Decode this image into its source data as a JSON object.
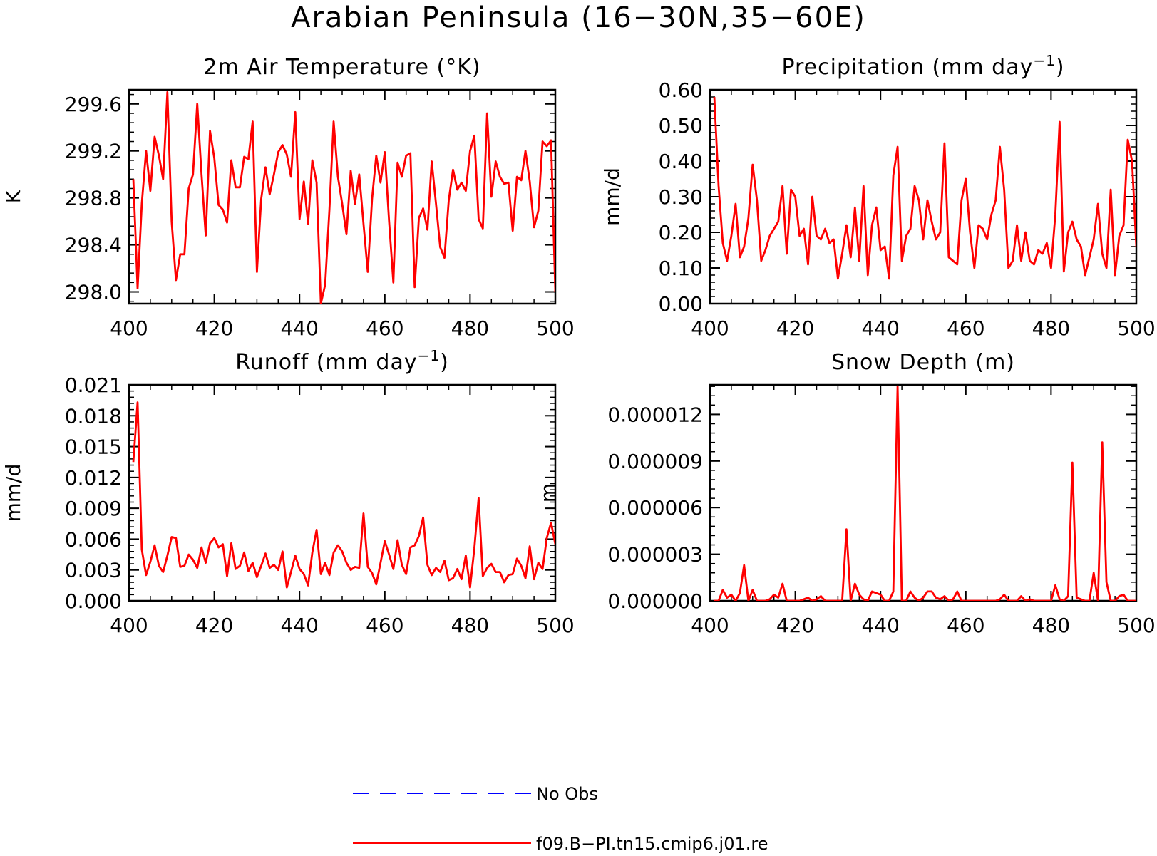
{
  "title": "Arabian Peninsula (16−30N,35−60E)",
  "colors": {
    "model": "#ff0000",
    "obs": "#0000ff",
    "axis": "#000000"
  },
  "legend": {
    "items": [
      {
        "label": "No Obs",
        "style": "dashed",
        "color": "#0000ff"
      },
      {
        "label": "f09.B−PI.tn15.cmip6.j01.re",
        "style": "solid",
        "color": "#ff0000"
      }
    ]
  },
  "chart_data": [
    {
      "type": "line",
      "title": "2m Air Temperature (°K)",
      "ylabel": "K",
      "xlim": [
        400,
        500
      ],
      "ylim": [
        297.9,
        299.72
      ],
      "xticks": [
        400,
        420,
        440,
        460,
        480,
        500
      ],
      "xtick_labels": [
        "400",
        "420",
        "440",
        "460",
        "480",
        "500"
      ],
      "yticks": [
        298.0,
        298.4,
        298.8,
        299.2,
        299.6
      ],
      "ytick_labels": [
        "298.0",
        "298.4",
        "298.8",
        "299.2",
        "299.6"
      ],
      "series": [
        {
          "name": "f09.B−PI.tn15.cmip6.j01.re",
          "x_start": 401,
          "x_step": 1,
          "values": [
            298.96,
            298.03,
            298.75,
            299.2,
            298.86,
            299.32,
            299.16,
            298.96,
            299.7,
            298.6,
            298.1,
            298.32,
            298.32,
            298.88,
            299.0,
            299.6,
            299.0,
            298.48,
            299.37,
            299.14,
            298.74,
            298.7,
            298.59,
            299.12,
            298.89,
            298.89,
            299.15,
            299.13,
            299.45,
            298.17,
            298.79,
            299.06,
            298.83,
            299.0,
            299.19,
            299.25,
            299.17,
            298.98,
            299.53,
            298.62,
            298.94,
            298.58,
            299.12,
            298.93,
            297.9,
            298.06,
            298.7,
            299.45,
            298.98,
            298.75,
            298.49,
            299.03,
            298.75,
            299.0,
            298.58,
            298.17,
            298.79,
            299.16,
            298.93,
            299.19,
            298.6,
            298.08,
            299.1,
            298.98,
            299.16,
            299.18,
            298.04,
            298.63,
            298.71,
            298.53,
            299.11,
            298.75,
            298.38,
            298.29,
            298.78,
            299.04,
            298.87,
            298.93,
            298.86,
            299.2,
            299.33,
            298.62,
            298.54,
            299.52,
            298.81,
            299.11,
            298.98,
            298.92,
            298.93,
            298.52,
            298.98,
            298.95,
            299.2,
            298.94,
            298.55,
            298.69,
            299.28,
            299.24,
            299.29,
            298.0
          ]
        }
      ]
    },
    {
      "type": "line",
      "title": "Precipitation (mm day",
      "title_sup": "−1",
      "title_suffix": ")",
      "ylabel": "mm/d",
      "xlim": [
        400,
        500
      ],
      "ylim": [
        0.0,
        0.6
      ],
      "xticks": [
        400,
        420,
        440,
        460,
        480,
        500
      ],
      "xtick_labels": [
        "400",
        "420",
        "440",
        "460",
        "480",
        "500"
      ],
      "yticks": [
        0.0,
        0.1,
        0.2,
        0.3,
        0.4,
        0.5,
        0.6
      ],
      "ytick_labels": [
        "0.00",
        "0.10",
        "0.20",
        "0.30",
        "0.40",
        "0.50",
        "0.60"
      ],
      "series": [
        {
          "name": "f09.B−PI.tn15.cmip6.j01.re",
          "x_start": 401,
          "x_step": 1,
          "values": [
            0.58,
            0.33,
            0.17,
            0.12,
            0.19,
            0.28,
            0.13,
            0.16,
            0.24,
            0.39,
            0.29,
            0.12,
            0.15,
            0.19,
            0.21,
            0.23,
            0.33,
            0.14,
            0.32,
            0.3,
            0.19,
            0.21,
            0.11,
            0.3,
            0.19,
            0.18,
            0.21,
            0.17,
            0.18,
            0.07,
            0.14,
            0.22,
            0.13,
            0.27,
            0.12,
            0.33,
            0.08,
            0.22,
            0.27,
            0.15,
            0.16,
            0.07,
            0.36,
            0.44,
            0.12,
            0.19,
            0.21,
            0.33,
            0.29,
            0.18,
            0.29,
            0.23,
            0.18,
            0.2,
            0.45,
            0.13,
            0.12,
            0.11,
            0.29,
            0.35,
            0.2,
            0.1,
            0.22,
            0.21,
            0.18,
            0.25,
            0.29,
            0.44,
            0.32,
            0.1,
            0.12,
            0.22,
            0.12,
            0.2,
            0.12,
            0.11,
            0.15,
            0.14,
            0.17,
            0.1,
            0.25,
            0.51,
            0.09,
            0.2,
            0.23,
            0.18,
            0.16,
            0.08,
            0.13,
            0.18,
            0.28,
            0.14,
            0.1,
            0.32,
            0.08,
            0.19,
            0.22,
            0.46,
            0.4,
            0.16
          ]
        }
      ]
    },
    {
      "type": "line",
      "title": "Runoff (mm day",
      "title_sup": "−1",
      "title_suffix": ")",
      "ylabel": "mm/d",
      "xlim": [
        400,
        500
      ],
      "ylim": [
        0.0,
        0.021
      ],
      "xticks": [
        400,
        420,
        440,
        460,
        480,
        500
      ],
      "xtick_labels": [
        "400",
        "420",
        "440",
        "460",
        "480",
        "500"
      ],
      "yticks": [
        0.0,
        0.003,
        0.006,
        0.009,
        0.012,
        0.015,
        0.018,
        0.021
      ],
      "ytick_labels": [
        "0.000",
        "0.003",
        "0.006",
        "0.009",
        "0.012",
        "0.015",
        "0.018",
        "0.021"
      ],
      "series": [
        {
          "name": "f09.B−PI.tn15.cmip6.j01.re",
          "x_start": 401,
          "x_step": 1,
          "values": [
            0.0135,
            0.0193,
            0.005,
            0.0025,
            0.0038,
            0.0054,
            0.0034,
            0.0028,
            0.0044,
            0.0062,
            0.0061,
            0.0033,
            0.0034,
            0.0045,
            0.004,
            0.0032,
            0.0052,
            0.0037,
            0.0056,
            0.0061,
            0.0052,
            0.0055,
            0.0024,
            0.0056,
            0.0031,
            0.0034,
            0.0047,
            0.0029,
            0.0037,
            0.0023,
            0.0034,
            0.0046,
            0.0032,
            0.0035,
            0.003,
            0.0048,
            0.0013,
            0.0028,
            0.0044,
            0.0031,
            0.0026,
            0.0015,
            0.0047,
            0.0069,
            0.0026,
            0.0037,
            0.0025,
            0.0047,
            0.0054,
            0.0048,
            0.0037,
            0.003,
            0.0033,
            0.0032,
            0.0085,
            0.0033,
            0.0027,
            0.0016,
            0.0037,
            0.0058,
            0.0045,
            0.0031,
            0.0059,
            0.0035,
            0.0026,
            0.0052,
            0.0054,
            0.0063,
            0.0081,
            0.0035,
            0.0025,
            0.0032,
            0.0028,
            0.0039,
            0.002,
            0.0022,
            0.0031,
            0.0021,
            0.0044,
            0.0013,
            0.0051,
            0.01,
            0.0024,
            0.0032,
            0.0036,
            0.0028,
            0.0028,
            0.0018,
            0.0025,
            0.0026,
            0.0041,
            0.0034,
            0.0022,
            0.0053,
            0.0021,
            0.0037,
            0.0031,
            0.0061,
            0.0076,
            0.0055
          ]
        }
      ]
    },
    {
      "type": "line",
      "title": "Snow Depth (m)",
      "ylabel": "m",
      "xlim": [
        400,
        500
      ],
      "ylim": [
        0.0,
        1.39e-05
      ],
      "xticks": [
        400,
        420,
        440,
        460,
        480,
        500
      ],
      "xtick_labels": [
        "400",
        "420",
        "440",
        "460",
        "480",
        "500"
      ],
      "yticks": [
        0.0,
        3e-06,
        6e-06,
        9e-06,
        1.2e-05
      ],
      "ytick_labels": [
        "0.000000",
        "0.000003",
        "0.000006",
        "0.000009",
        "0.000012"
      ],
      "series": [
        {
          "name": "f09.B−PI.tn15.cmip6.j01.re",
          "x_start": 401,
          "x_step": 1,
          "values": [
            0.0,
            0.0,
            7e-07,
            2e-07,
            4e-07,
            0.0,
            5e-07,
            2.3e-06,
            0.0,
            7e-07,
            0.0,
            0.0,
            0.0,
            1e-07,
            4e-07,
            2e-07,
            1.1e-06,
            0.0,
            0.0,
            0.0,
            0.0,
            1e-07,
            2e-07,
            0.0,
            1e-07,
            3e-07,
            0.0,
            0.0,
            0.0,
            0.0,
            0.0,
            4.6e-06,
            0.0,
            1.1e-06,
            4e-07,
            1e-07,
            0.0,
            6e-07,
            5e-07,
            4e-07,
            0.0,
            0.0,
            6e-07,
            1.38e-05,
            0.0,
            0.0,
            6e-07,
            2e-07,
            0.0,
            2e-07,
            6e-07,
            6e-07,
            2e-07,
            1e-07,
            3e-07,
            0.0,
            1e-07,
            6e-07,
            0.0,
            0.0,
            0.0,
            0.0,
            0.0,
            0.0,
            0.0,
            0.0,
            0.0,
            1e-07,
            4e-07,
            0.0,
            0.0,
            0.0,
            3e-07,
            0.0,
            1e-07,
            0.0,
            0.0,
            0.0,
            0.0,
            0.0,
            1e-06,
            1e-07,
            0.0,
            3e-07,
            8.9e-06,
            2e-07,
            1e-07,
            0.0,
            0.0,
            1.8e-06,
            0.0,
            1.02e-05,
            1.2e-06,
            0.0,
            0.0,
            3e-07,
            4e-07,
            0.0,
            0.0,
            0.0
          ]
        }
      ]
    }
  ]
}
